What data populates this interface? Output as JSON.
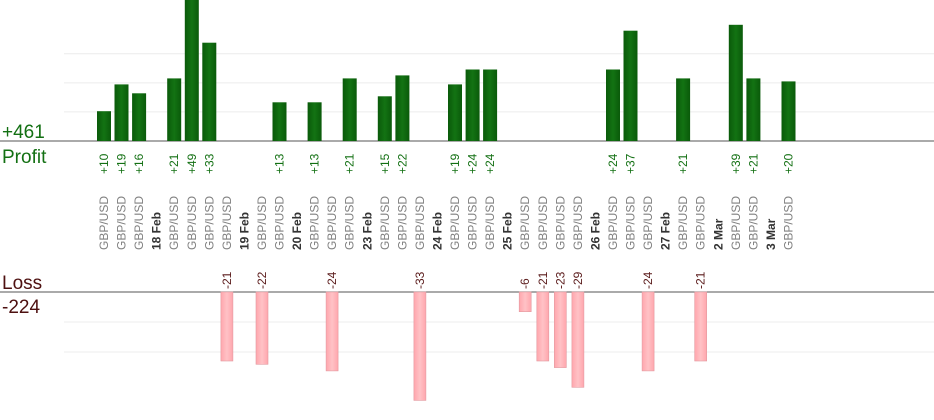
{
  "summary": {
    "profit_total": "+461",
    "profit_label": "Profit",
    "loss_label": "Loss",
    "loss_total": "-224"
  },
  "chart_data": {
    "type": "bar",
    "title": "",
    "xlabel": "",
    "ylabel": "",
    "grid": true,
    "legend": "none",
    "profit_ylim": [
      0,
      50
    ],
    "loss_ylim": [
      -35,
      0
    ],
    "colors": {
      "profit": "#0f6b0f",
      "loss": "#ffb3b8",
      "loss_label": "#5a1a1a",
      "profit_label": "#137013"
    },
    "trades": [
      {
        "pair": "GBP/USD",
        "value": 10,
        "label": "+10"
      },
      {
        "pair": "GBP/USD",
        "value": 19,
        "label": "+19"
      },
      {
        "pair": "GBP/USD",
        "value": 16,
        "label": "+16"
      },
      {
        "date": "18 Feb"
      },
      {
        "pair": "GBP/USD",
        "value": 21,
        "label": "+21"
      },
      {
        "pair": "GBP/USD",
        "value": 49,
        "label": "+49"
      },
      {
        "pair": "GBP/USD",
        "value": 33,
        "label": "+33"
      },
      {
        "pair": "GBP/USD",
        "value": -21,
        "label": "-21"
      },
      {
        "date": "19 Feb"
      },
      {
        "pair": "GBP/USD",
        "value": -22,
        "label": "-22"
      },
      {
        "pair": "GBP/USD",
        "value": 13,
        "label": "+13"
      },
      {
        "date": "20 Feb"
      },
      {
        "pair": "GBP/USD",
        "value": 13,
        "label": "+13"
      },
      {
        "pair": "GBP/USD",
        "value": -24,
        "label": "-24"
      },
      {
        "pair": "GBP/USD",
        "value": 21,
        "label": "+21"
      },
      {
        "date": "23 Feb"
      },
      {
        "pair": "GBP/USD",
        "value": 15,
        "label": "+15"
      },
      {
        "pair": "GBP/USD",
        "value": 22,
        "label": "+22"
      },
      {
        "pair": "GBP/USD",
        "value": -33,
        "label": "-33"
      },
      {
        "date": "24 Feb"
      },
      {
        "pair": "GBP/USD",
        "value": 19,
        "label": "+19"
      },
      {
        "pair": "GBP/USD",
        "value": 24,
        "label": "+24"
      },
      {
        "pair": "GBP/USD",
        "value": 24,
        "label": "+24"
      },
      {
        "date": "25 Feb"
      },
      {
        "pair": "GBP/USD",
        "value": -6,
        "label": "-6"
      },
      {
        "pair": "GBP/USD",
        "value": -21,
        "label": "-21"
      },
      {
        "pair": "GBP/USD",
        "value": -23,
        "label": "-23"
      },
      {
        "pair": "GBP/USD",
        "value": -29,
        "label": "-29"
      },
      {
        "date": "26 Feb"
      },
      {
        "pair": "GBP/USD",
        "value": 24,
        "label": "+24"
      },
      {
        "pair": "GBP/USD",
        "value": 37,
        "label": "+37"
      },
      {
        "pair": "GBP/USD",
        "value": -24,
        "label": "-24"
      },
      {
        "date": "27 Feb"
      },
      {
        "pair": "GBP/USD",
        "value": 21,
        "label": "+21"
      },
      {
        "pair": "GBP/USD",
        "value": -21,
        "label": "-21"
      },
      {
        "date": "2 Mar"
      },
      {
        "pair": "GBP/USD",
        "value": 39,
        "label": "+39"
      },
      {
        "pair": "GBP/USD",
        "value": 21,
        "label": "+21"
      },
      {
        "date": "3 Mar"
      },
      {
        "pair": "GBP/USD",
        "value": 20,
        "label": "+20"
      }
    ]
  }
}
